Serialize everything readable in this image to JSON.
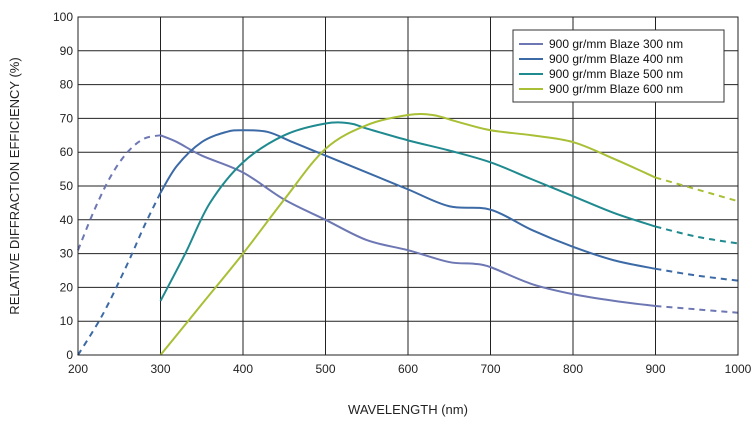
{
  "chart_data": {
    "type": "line",
    "title": "",
    "xlabel": "WAVELENGTH (nm)",
    "ylabel": "RELATIVE DIFFRACTION EFFICIENCY (%)",
    "xlim": [
      200,
      1000
    ],
    "ylim": [
      0,
      100
    ],
    "xticks": [
      "200",
      "300",
      "400",
      "500",
      "600",
      "700",
      "800",
      "900",
      "1000"
    ],
    "yticks": [
      "0",
      "10",
      "20",
      "30",
      "40",
      "50",
      "60",
      "70",
      "80",
      "90",
      "100"
    ],
    "grid": true,
    "legend_position": "top-right",
    "series": [
      {
        "name": "900 gr/mm Blaze 300 nm",
        "color": "#6d77b3",
        "dashed": [
          [
            200,
            31
          ],
          [
            220,
            43
          ],
          [
            240,
            53
          ],
          [
            260,
            60
          ],
          [
            280,
            64
          ],
          [
            300,
            65
          ]
        ],
        "solid": [
          [
            300,
            65
          ],
          [
            320,
            63
          ],
          [
            350,
            59
          ],
          [
            400,
            54
          ],
          [
            450,
            46
          ],
          [
            500,
            40
          ],
          [
            550,
            34
          ],
          [
            600,
            31
          ],
          [
            650,
            27.5
          ],
          [
            680,
            27
          ],
          [
            700,
            26
          ],
          [
            750,
            21
          ],
          [
            800,
            18
          ],
          [
            850,
            16
          ],
          [
            900,
            14.5
          ]
        ],
        "dashed_end": [
          [
            900,
            14.5
          ],
          [
            950,
            13.5
          ],
          [
            1000,
            12.5
          ]
        ]
      },
      {
        "name": "900 gr/mm Blaze 400 nm",
        "color": "#3c6aa6",
        "dashed": [
          [
            200,
            0
          ],
          [
            230,
            12
          ],
          [
            260,
            27
          ],
          [
            280,
            38
          ],
          [
            300,
            48
          ]
        ],
        "solid": [
          [
            300,
            48
          ],
          [
            320,
            56
          ],
          [
            350,
            63
          ],
          [
            380,
            66
          ],
          [
            400,
            66.5
          ],
          [
            430,
            66
          ],
          [
            460,
            63
          ],
          [
            500,
            59
          ],
          [
            550,
            54
          ],
          [
            600,
            49
          ],
          [
            650,
            44
          ],
          [
            700,
            43
          ],
          [
            750,
            37
          ],
          [
            800,
            32
          ],
          [
            850,
            28
          ],
          [
            900,
            25.5
          ]
        ],
        "dashed_end": [
          [
            900,
            25.5
          ],
          [
            950,
            23.5
          ],
          [
            1000,
            22
          ]
        ]
      },
      {
        "name": "900 gr/mm Blaze 500 nm",
        "color": "#1f8a8f",
        "dashed": [],
        "solid": [
          [
            300,
            16
          ],
          [
            330,
            30
          ],
          [
            360,
            45
          ],
          [
            400,
            57
          ],
          [
            450,
            65
          ],
          [
            500,
            68.5
          ],
          [
            530,
            68.5
          ],
          [
            550,
            67
          ],
          [
            600,
            63.5
          ],
          [
            650,
            60.5
          ],
          [
            700,
            57
          ],
          [
            750,
            52
          ],
          [
            800,
            47
          ],
          [
            850,
            42
          ],
          [
            900,
            38
          ]
        ],
        "dashed_end": [
          [
            900,
            38
          ],
          [
            950,
            35
          ],
          [
            1000,
            33
          ]
        ]
      },
      {
        "name": "900 gr/mm Blaze 600 nm",
        "color": "#a9bf35",
        "dashed": [],
        "solid": [
          [
            300,
            0
          ],
          [
            350,
            15
          ],
          [
            400,
            30
          ],
          [
            450,
            46
          ],
          [
            500,
            61
          ],
          [
            550,
            68
          ],
          [
            600,
            71
          ],
          [
            630,
            71
          ],
          [
            660,
            69
          ],
          [
            700,
            66.5
          ],
          [
            750,
            65
          ],
          [
            800,
            63
          ],
          [
            850,
            58
          ],
          [
            900,
            52.5
          ]
        ],
        "dashed_end": [
          [
            900,
            52.5
          ],
          [
            950,
            49
          ],
          [
            1000,
            45.5
          ]
        ]
      }
    ]
  }
}
